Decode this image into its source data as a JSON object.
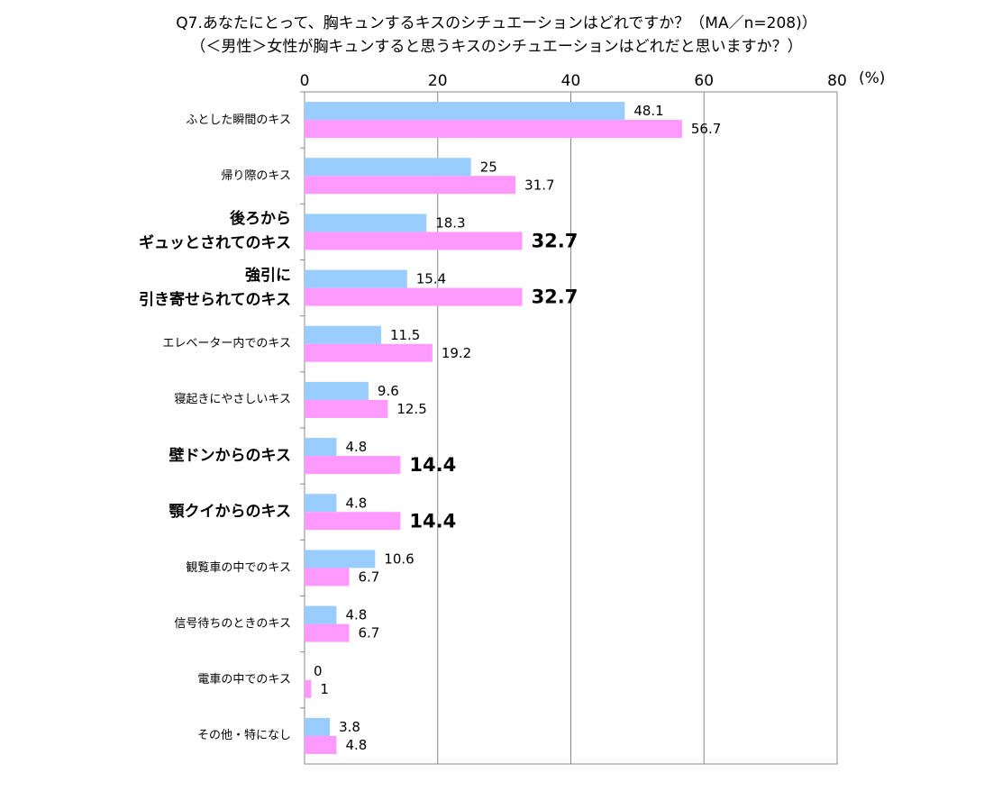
{
  "title": "Q7.あなたにとって、胸キュンするキスのシチュエーションはどれですか？（MA／n=208)）",
  "subtitle": "（＜男性＞女性が胸キュンすると思うキスのシチュエーションはどれだと思いますか？）",
  "chart_data": {
    "type": "bar",
    "orientation": "horizontal",
    "title": "Q7.あなたにとって、胸キュンするキスのシチュエーションはどれですか？（MA／n=208)）",
    "subtitle": "（＜男性＞女性が胸キュンすると思うキスのシチュエーションはどれだと思いますか？）",
    "xlim": [
      0,
      80
    ],
    "x_ticks": [
      "0",
      "20",
      "40",
      "60",
      "80"
    ],
    "unit": "(%)",
    "grid": true,
    "categories": [
      "ふとした瞬間のキス",
      "帰り際のキス",
      "後ろから\nギュッとされてのキス",
      "強引に\n引き寄せられてのキス",
      "エレベーター内でのキス",
      "寝起きにやさしいキス",
      "壁ドンからのキス",
      "顎クイからのキス",
      "観覧車の中でのキス",
      "信号待ちのときのキス",
      "電車の中でのキス",
      "その他・特になし"
    ],
    "highlighted_categories": [
      2,
      3,
      6,
      7
    ],
    "series": [
      {
        "color": "#99CCFF",
        "values": [
          48.1,
          25,
          18.3,
          15.4,
          11.5,
          9.6,
          4.8,
          4.8,
          10.6,
          4.8,
          0,
          3.8
        ],
        "labels": [
          "48.1",
          "25",
          "18.3",
          "15.4",
          "11.5",
          "9.6",
          "4.8",
          "4.8",
          "10.6",
          "4.8",
          "0",
          "3.8"
        ]
      },
      {
        "color": "#FF99FF",
        "values": [
          56.7,
          31.7,
          32.7,
          32.7,
          19.2,
          12.5,
          14.4,
          14.4,
          6.7,
          6.7,
          1,
          4.8
        ],
        "labels": [
          "56.7",
          "31.7",
          "32.7",
          "32.7",
          "19.2",
          "12.5",
          "14.4",
          "14.4",
          "6.7",
          "6.7",
          "1",
          "4.8"
        ]
      }
    ]
  }
}
